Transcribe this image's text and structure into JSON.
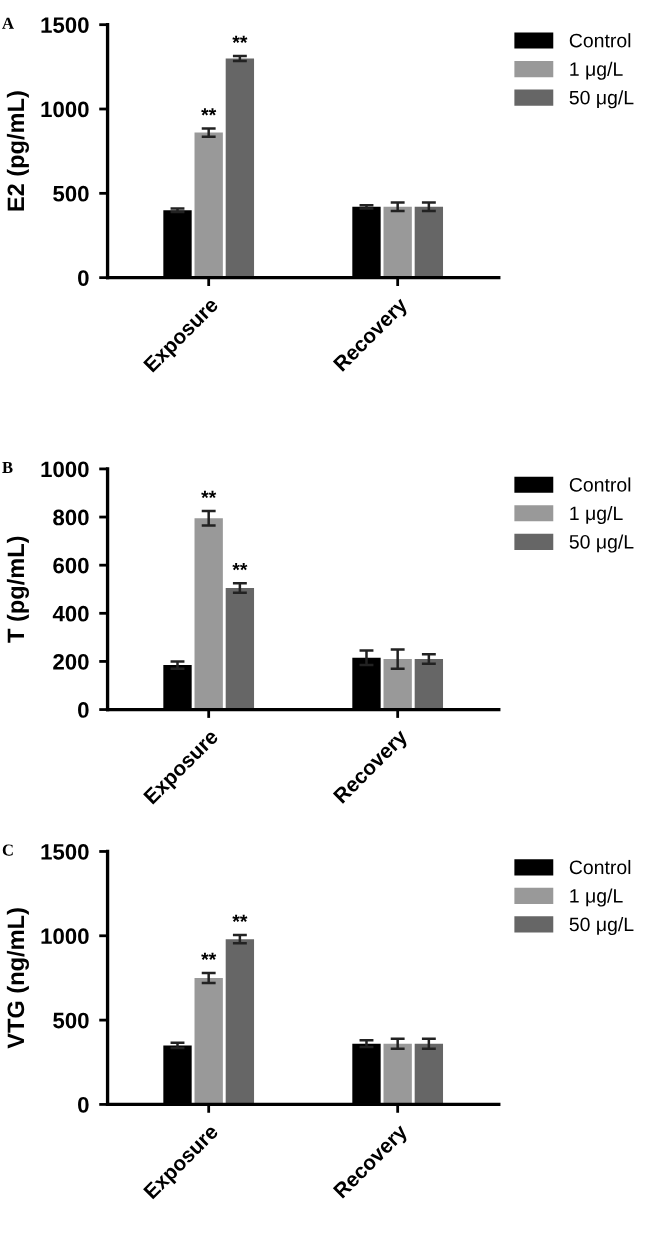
{
  "chart_data": [
    {
      "type": "bar",
      "title": "A",
      "ylabel": "E2 (pg/mL)",
      "categories": [
        "Exposure",
        "Recovery"
      ],
      "series": [
        {
          "name": "Control",
          "color": "#000000",
          "values": [
            400,
            420
          ],
          "errors": [
            10,
            10
          ]
        },
        {
          "name": "1 μg/L",
          "color": "#999999",
          "values": [
            860,
            420
          ],
          "errors": [
            25,
            25
          ],
          "value_labels": [
            "**",
            null
          ]
        },
        {
          "name": "50 μg/L",
          "color": "#666666",
          "values": [
            1300,
            420
          ],
          "errors": [
            15,
            25
          ],
          "value_labels": [
            "**",
            null
          ]
        }
      ],
      "ylim": [
        0,
        1500
      ],
      "yticks": [
        0,
        500,
        1000,
        1500
      ],
      "legend": "right",
      "grid": false
    },
    {
      "type": "bar",
      "title": "B",
      "ylabel": "T (pg/mL)",
      "categories": [
        "Exposure",
        "Recovery"
      ],
      "series": [
        {
          "name": "Control",
          "color": "#000000",
          "values": [
            185,
            215
          ],
          "errors": [
            15,
            30
          ]
        },
        {
          "name": "1 μg/L",
          "color": "#999999",
          "values": [
            795,
            210
          ],
          "errors": [
            30,
            40
          ],
          "value_labels": [
            "**",
            null
          ]
        },
        {
          "name": "50 μg/L",
          "color": "#666666",
          "values": [
            505,
            210
          ],
          "errors": [
            20,
            20
          ],
          "value_labels": [
            "**",
            null
          ]
        }
      ],
      "ylim": [
        0,
        1000
      ],
      "yticks": [
        0,
        200,
        400,
        600,
        800,
        1000
      ],
      "legend": "right",
      "grid": false
    },
    {
      "type": "bar",
      "title": "C",
      "ylabel": "VTG (ng/mL)",
      "categories": [
        "Exposure",
        "Recovery"
      ],
      "series": [
        {
          "name": "Control",
          "color": "#000000",
          "values": [
            350,
            360
          ],
          "errors": [
            15,
            20
          ]
        },
        {
          "name": "1 μg/L",
          "color": "#999999",
          "values": [
            750,
            360
          ],
          "errors": [
            30,
            30
          ],
          "value_labels": [
            "**",
            null
          ]
        },
        {
          "name": "50 μg/L",
          "color": "#666666",
          "values": [
            980,
            360
          ],
          "errors": [
            25,
            30
          ],
          "value_labels": [
            "**",
            null
          ]
        }
      ],
      "ylim": [
        0,
        1500
      ],
      "yticks": [
        0,
        500,
        1000,
        1500
      ],
      "legend": "right",
      "grid": false
    }
  ]
}
